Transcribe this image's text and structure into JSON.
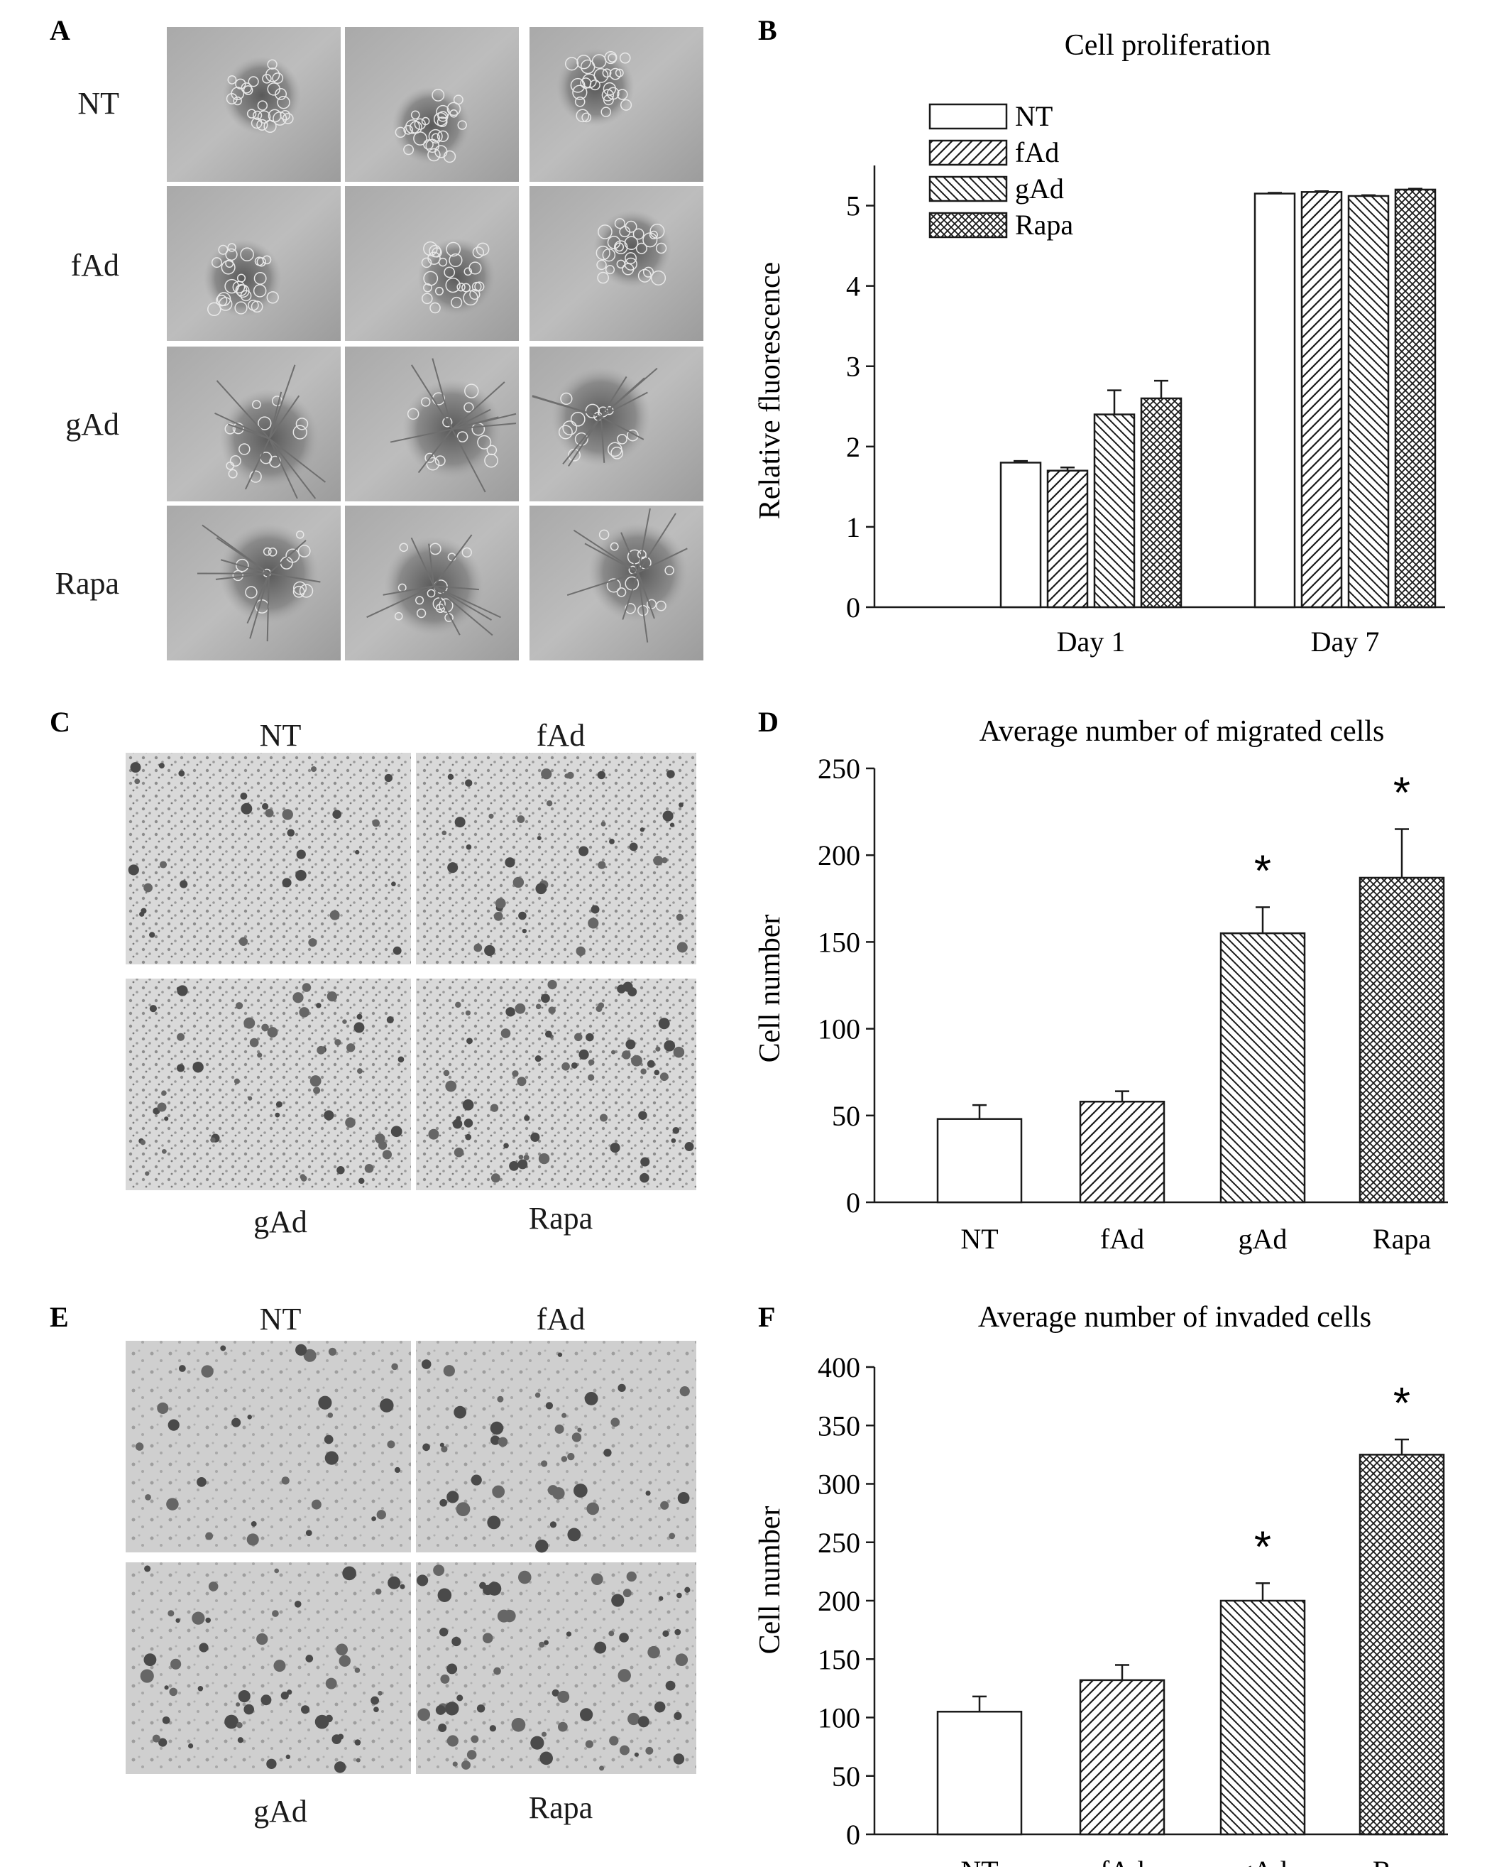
{
  "panels": {
    "A": {
      "letter": "A",
      "row_labels": [
        "NT",
        "fAd",
        "gAd",
        "Rapa"
      ]
    },
    "B": {
      "letter": "B"
    },
    "C": {
      "letter": "C",
      "image_labels": [
        "NT",
        "fAd",
        "gAd",
        "Rapa"
      ]
    },
    "D": {
      "letter": "D"
    },
    "E": {
      "letter": "E",
      "image_labels": [
        "NT",
        "fAd",
        "gAd",
        "Rapa"
      ]
    },
    "F": {
      "letter": "F"
    }
  },
  "colors": {
    "NT": "#ffffff",
    "fAd": "pattern-diag-up",
    "gAd": "pattern-diag-down",
    "Rapa": "pattern-crosshatch",
    "line": "#1a1a1a"
  },
  "chart_data": [
    {
      "id": "B",
      "type": "bar",
      "title": "Cell proliferation",
      "xlabel": "",
      "ylabel": "Relative fluorescence",
      "categories": [
        "Day 1",
        "Day 7"
      ],
      "ylim": [
        0,
        5.5
      ],
      "yticks": [
        "0",
        "1",
        "2",
        "3",
        "4",
        "5"
      ],
      "legend_position": "top-left",
      "series": [
        {
          "name": "NT",
          "values": [
            1.8,
            5.15
          ],
          "errors": [
            0.02,
            0.01
          ]
        },
        {
          "name": "fAd",
          "values": [
            1.7,
            5.17
          ],
          "errors": [
            0.04,
            0.01
          ]
        },
        {
          "name": "gAd",
          "values": [
            2.4,
            5.12
          ],
          "errors": [
            0.3,
            0.01
          ]
        },
        {
          "name": "Rapa",
          "values": [
            2.6,
            5.2
          ],
          "errors": [
            0.22,
            0.01
          ]
        }
      ]
    },
    {
      "id": "D",
      "type": "bar",
      "title": "Average number of migrated cells",
      "xlabel": "",
      "ylabel": "Cell number",
      "categories": [
        "NT",
        "fAd",
        "gAd",
        "Rapa"
      ],
      "values": [
        48,
        58,
        155,
        187
      ],
      "errors": [
        8,
        6,
        15,
        28
      ],
      "significance": [
        "",
        "",
        "*",
        "*"
      ],
      "ylim": [
        0,
        250
      ],
      "yticks": [
        "0",
        "50",
        "100",
        "150",
        "200",
        "250"
      ]
    },
    {
      "id": "F",
      "type": "bar",
      "title": "Average number of invaded cells",
      "xlabel": "",
      "ylabel": "Cell number",
      "categories": [
        "NT",
        "fAd",
        "gAd",
        "Rapa"
      ],
      "values": [
        105,
        132,
        200,
        325
      ],
      "errors": [
        13,
        13,
        15,
        13
      ],
      "significance": [
        "",
        "",
        "*",
        "*"
      ],
      "ylim": [
        0,
        400
      ],
      "yticks": [
        "0",
        "50",
        "100",
        "150",
        "200",
        "250",
        "300",
        "350",
        "400"
      ]
    }
  ]
}
